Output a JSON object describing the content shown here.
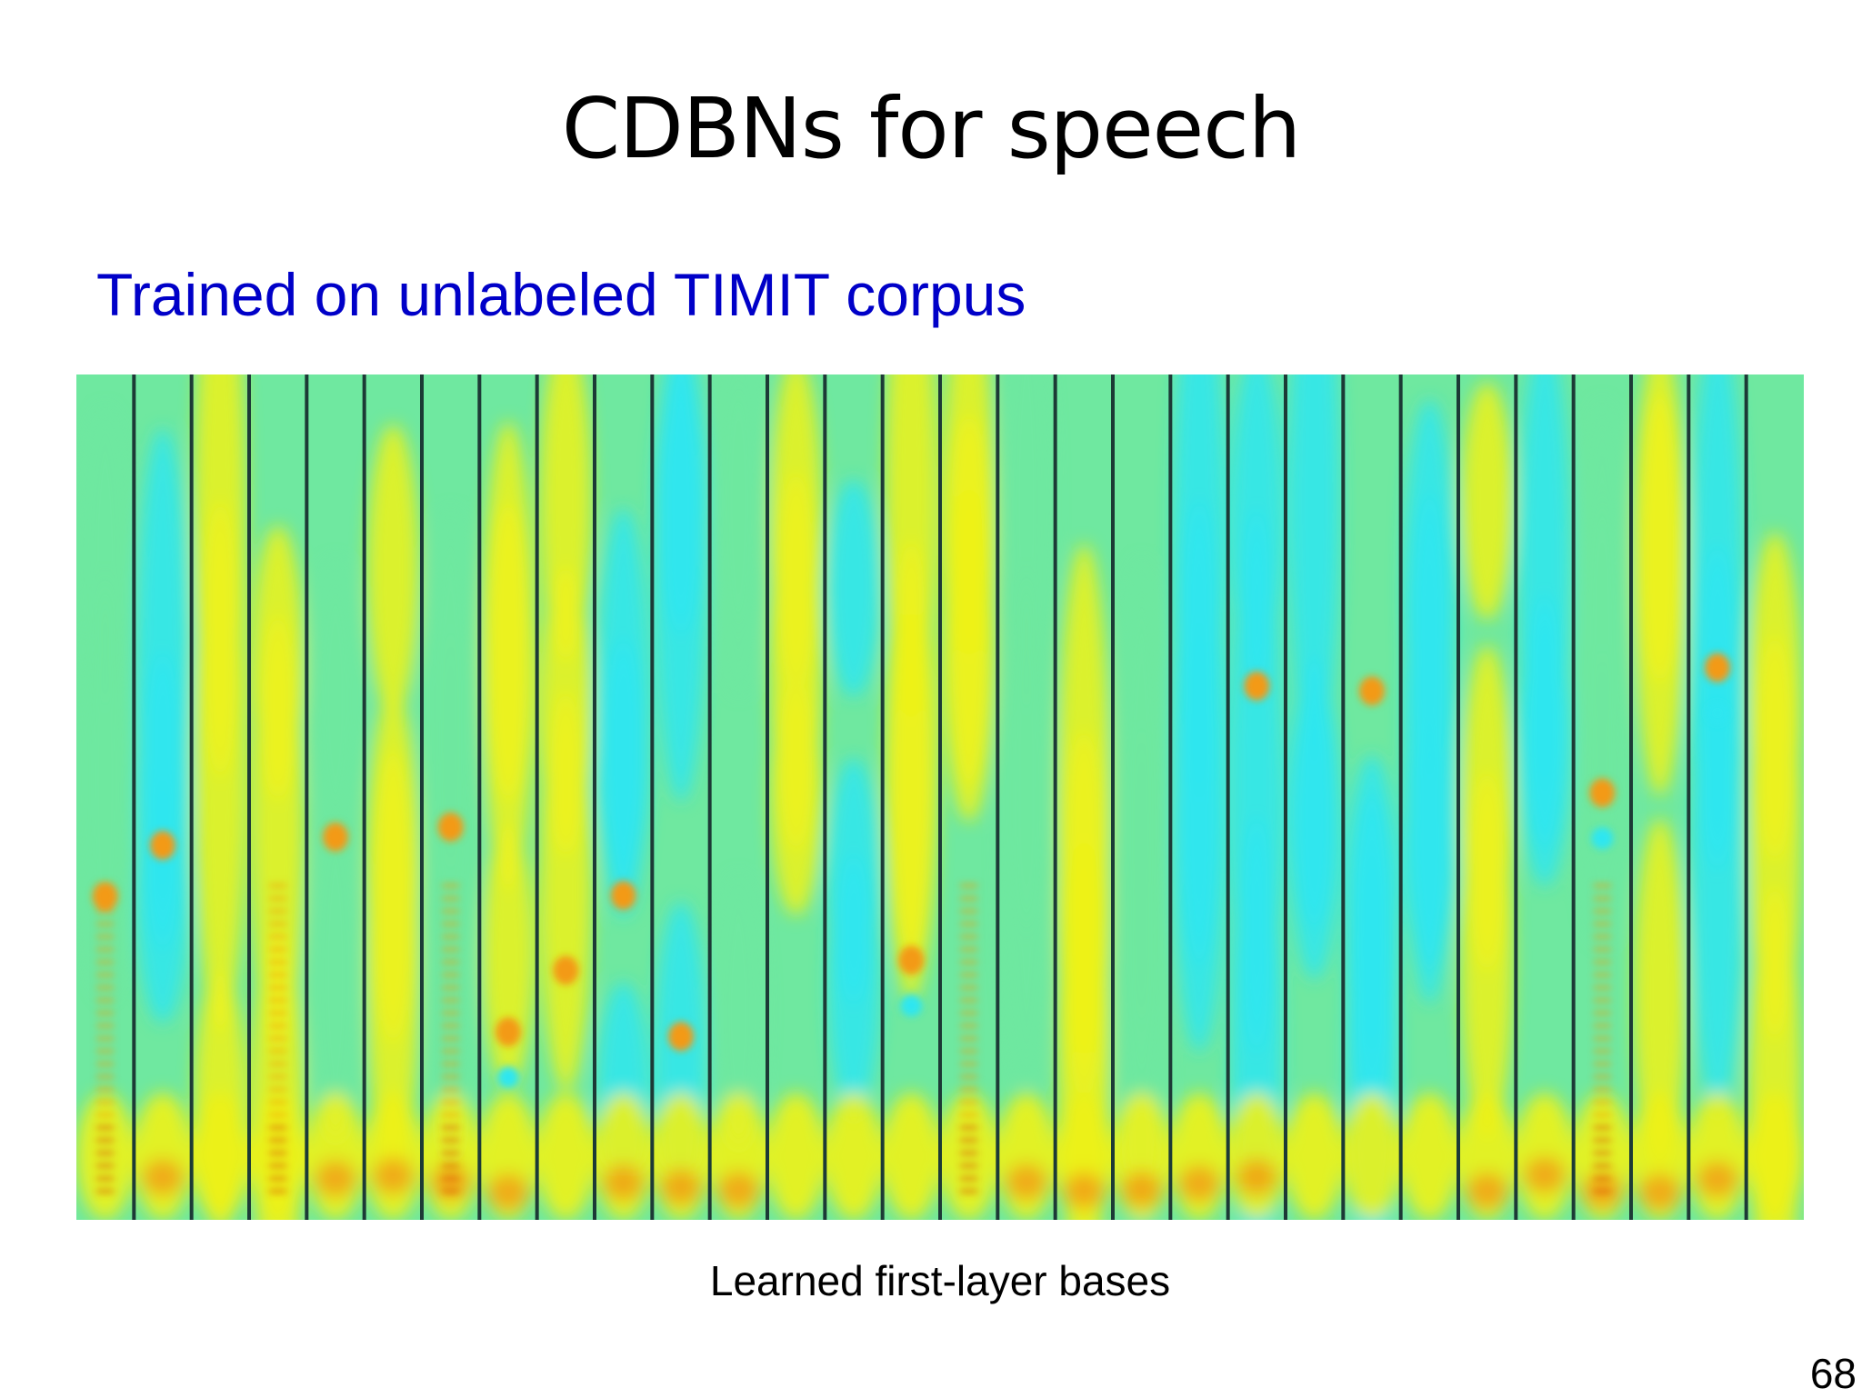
{
  "slide": {
    "title": "CDBNs for speech",
    "subtitle": "Trained on unlabeled TIMIT corpus",
    "caption": "Learned first-layer bases",
    "page_number": "68",
    "colors": {
      "subtitle": "#0000c8",
      "base_green": "#6fe8a0",
      "cyan": "#2ee6f0",
      "yellow": "#eef21a",
      "orange": "#f39a12",
      "red": "#d9481a",
      "separator": "#1c3a36"
    }
  }
}
